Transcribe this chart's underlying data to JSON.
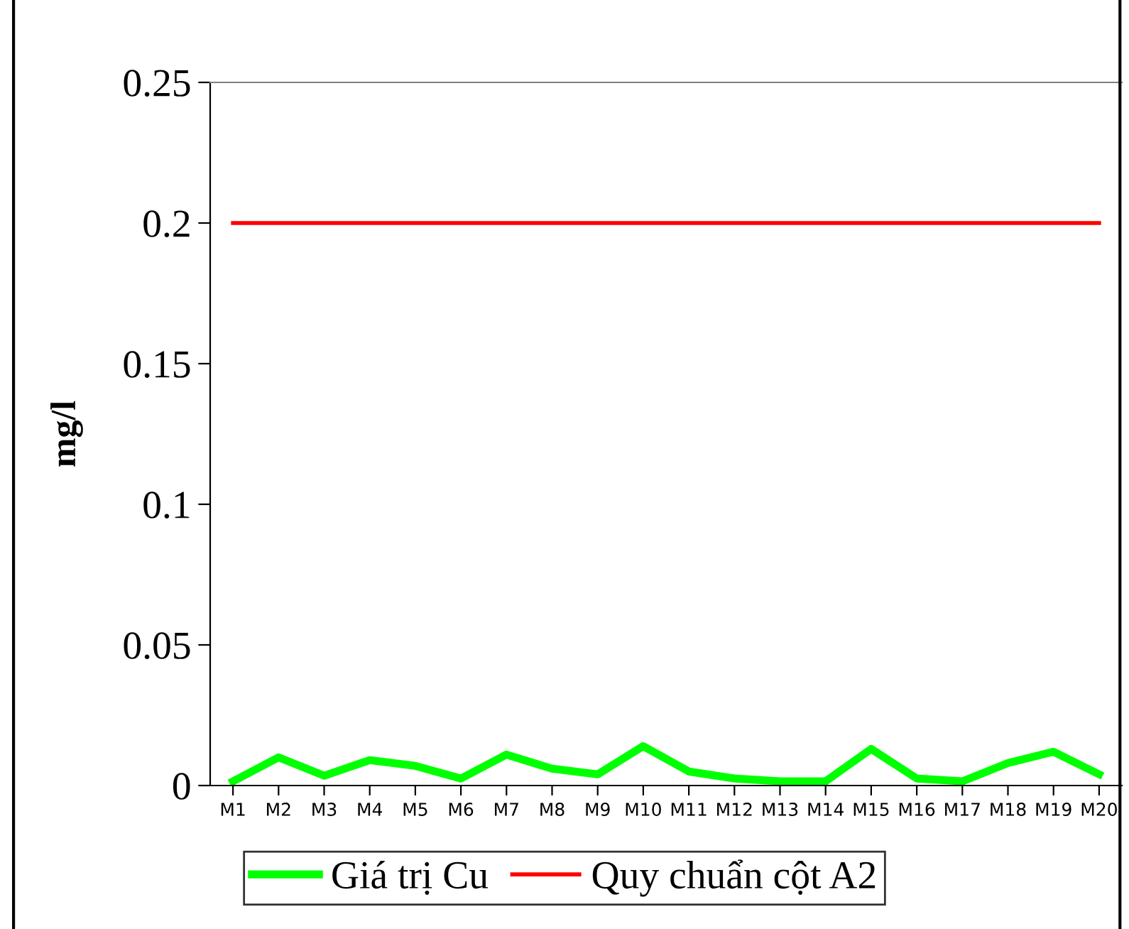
{
  "chart_data": {
    "type": "line",
    "ylabel": "mg/l",
    "categories": [
      "M1",
      "M2",
      "M3",
      "M4",
      "M5",
      "M6",
      "M7",
      "M8",
      "M9",
      "M10",
      "M11",
      "M12",
      "M13",
      "M14",
      "M15",
      "M16",
      "M17",
      "M18",
      "M19",
      "M20"
    ],
    "series": [
      {
        "name": "Giá trị Cu",
        "color": "#00ff00",
        "values": [
          0.0015,
          0.01,
          0.0035,
          0.009,
          0.007,
          0.0025,
          0.011,
          0.006,
          0.004,
          0.014,
          0.005,
          0.0025,
          0.0015,
          0.0015,
          0.013,
          0.0025,
          0.0015,
          0.008,
          0.012,
          0.004
        ]
      },
      {
        "name": "Quy chuẩn cột A2",
        "color": "#ff0000",
        "values": [
          0.2,
          0.2,
          0.2,
          0.2,
          0.2,
          0.2,
          0.2,
          0.2,
          0.2,
          0.2,
          0.2,
          0.2,
          0.2,
          0.2,
          0.2,
          0.2,
          0.2,
          0.2,
          0.2,
          0.2
        ]
      }
    ],
    "ylim": [
      0,
      0.25
    ],
    "yticks": [
      {
        "value": 0,
        "label": "0"
      },
      0.05,
      0.1,
      0.15,
      0.2,
      0.25
    ],
    "grid": false,
    "legend": "bottom",
    "marker": "none",
    "line_style": "solid"
  }
}
